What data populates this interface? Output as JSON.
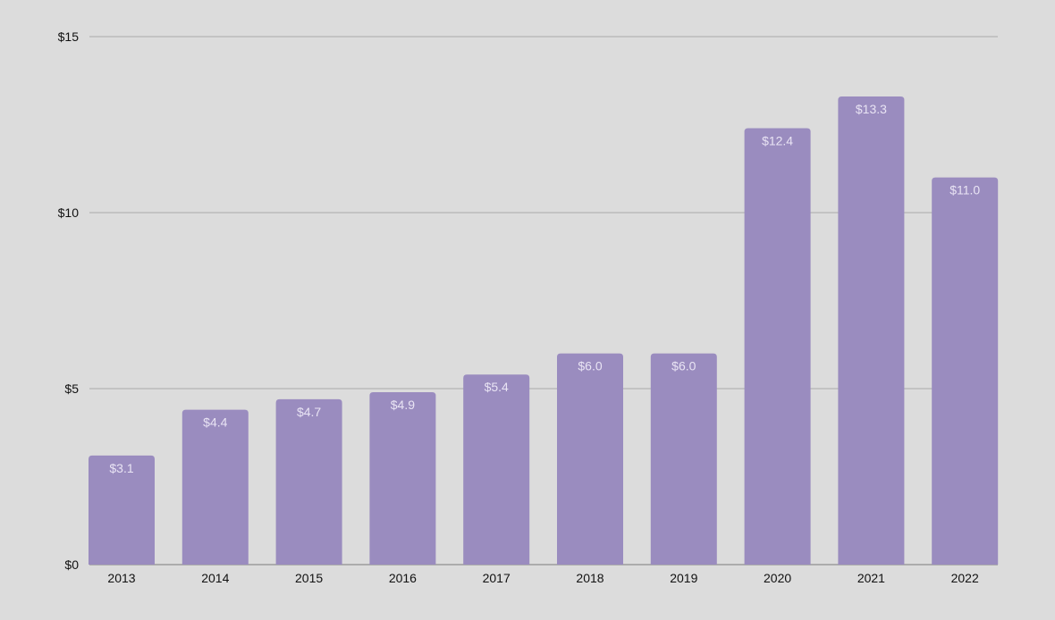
{
  "chart_data": {
    "type": "bar",
    "title": "",
    "xlabel": "",
    "ylabel": "",
    "categories": [
      "2013",
      "2014",
      "2015",
      "2016",
      "2017",
      "2018",
      "2019",
      "2020",
      "2021",
      "2022"
    ],
    "values": [
      3.1,
      4.4,
      4.7,
      4.9,
      5.4,
      6.0,
      6.0,
      12.4,
      13.3,
      11.0
    ],
    "data_labels": [
      "$3.1",
      "$4.4",
      "$4.7",
      "$4.9",
      "$5.4",
      "$6.0",
      "$6.0",
      "$12.4",
      "$13.3",
      "$11.0"
    ],
    "ylim": [
      0,
      15
    ],
    "yticks": [
      0,
      5,
      10,
      15
    ],
    "ytick_labels": [
      "$0",
      "$5",
      "$10",
      "$15"
    ],
    "grid": true,
    "legend": "none",
    "colors": {
      "bar": "#9a8cbf",
      "background": "#dcdcdc",
      "gridline": "#b4b4b4",
      "data_label": "#e9e4f4"
    }
  }
}
